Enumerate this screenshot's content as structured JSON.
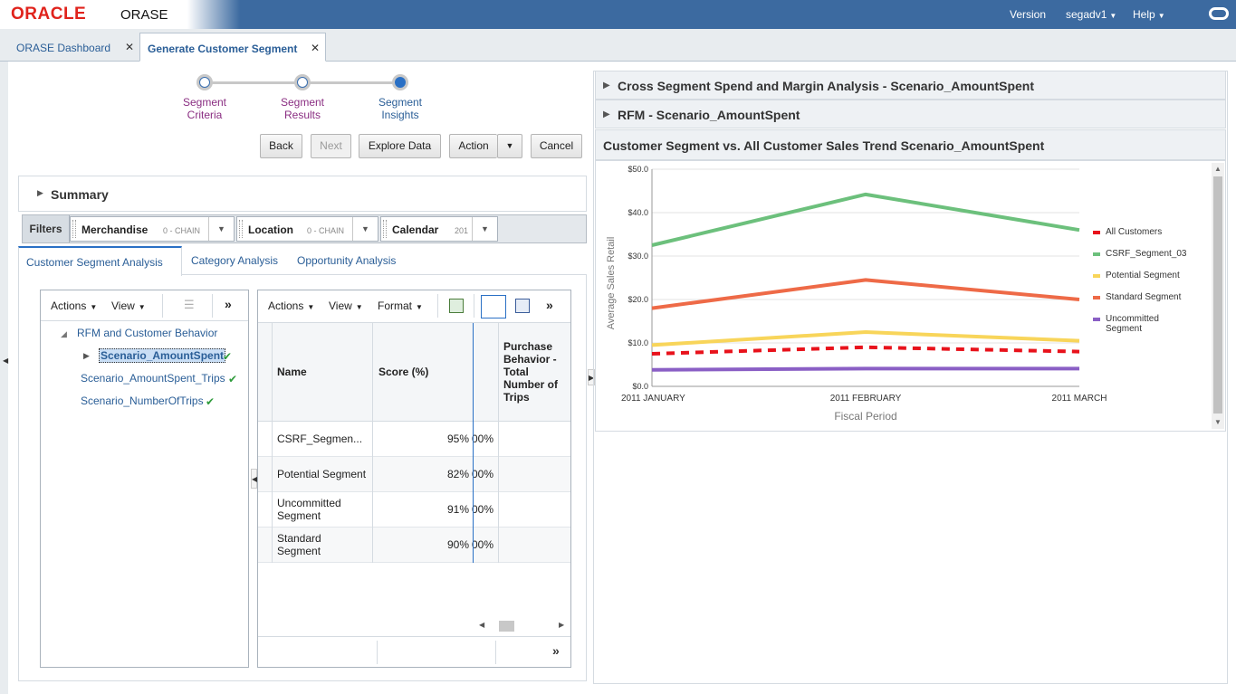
{
  "header": {
    "logo_text": "ORACLE",
    "app_name": "ORASE",
    "version_label": "Version",
    "user_label": "segadv1",
    "help_label": "Help"
  },
  "tabs": [
    {
      "label": "ORASE Dashboard",
      "active": false
    },
    {
      "label": "Generate Customer Segment",
      "active": true
    }
  ],
  "train": {
    "steps": [
      {
        "line1": "Segment",
        "line2": "Criteria"
      },
      {
        "line1": "Segment",
        "line2": "Results"
      },
      {
        "line1": "Segment",
        "line2": "Insights"
      }
    ],
    "current_step": 3
  },
  "buttons": {
    "back": "Back",
    "next": "Next",
    "explore": "Explore Data",
    "action": "Action",
    "cancel": "Cancel"
  },
  "summary": {
    "title": "Summary"
  },
  "filters": {
    "label": "Filters",
    "items": [
      {
        "name": "Merchandise",
        "sub": "0 - CHAIN"
      },
      {
        "name": "Location",
        "sub": "0 - CHAIN"
      },
      {
        "name": "Calendar",
        "sub": "201"
      }
    ]
  },
  "subtabs": [
    {
      "label": "Customer Segment Analysis",
      "active": true
    },
    {
      "label": "Category Analysis",
      "active": false
    },
    {
      "label": "Opportunity Analysis",
      "active": false
    }
  ],
  "tree": {
    "toolbar": {
      "actions": "Actions",
      "view": "View",
      "more": "»"
    },
    "root": "RFM and Customer Behavior",
    "nodes": [
      {
        "label": "Scenario_AmountSpent",
        "selected": true
      },
      {
        "label": "Scenario_AmountSpent_Trips",
        "selected": false
      },
      {
        "label": "Scenario_NumberOfTrips",
        "selected": false
      }
    ]
  },
  "table": {
    "toolbar": {
      "actions": "Actions",
      "view": "View",
      "format": "Format",
      "more": "»"
    },
    "headers": {
      "name": "Name",
      "score": "Score (%)",
      "purchase_l1": "Purchase",
      "purchase_l2": "Behavior -",
      "purchase_l3": "Total",
      "purchase_l4": "Number of",
      "purchase_l5": "Trips"
    },
    "rows": [
      {
        "name1": "CSRF_Segmen...",
        "name2": "",
        "score": "95%",
        "frag": "00%"
      },
      {
        "name1": "Potential Segment",
        "name2": "",
        "score": "82%",
        "frag": "00%"
      },
      {
        "name1": "Uncommitted",
        "name2": "Segment",
        "score": "91%",
        "frag": "00%"
      },
      {
        "name1": "Standard",
        "name2": "Segment",
        "score": "90%",
        "frag": "00%"
      }
    ],
    "footer_more": "»"
  },
  "right": {
    "acc1": "Cross Segment Spend and Margin Analysis - Scenario_AmountSpent",
    "acc2": "RFM - Scenario_AmountSpent",
    "acc3": "Customer Segment vs. All Customer Sales Trend Scenario_AmountSpent"
  },
  "chart_data": {
    "type": "line",
    "title": "Customer Segment vs. All Customer Sales Trend Scenario_AmountSpent",
    "xlabel": "Fiscal Period",
    "ylabel": "Average Sales Retail",
    "categories": [
      "2011 JANUARY",
      "2011 FEBRUARY",
      "2011 MARCH"
    ],
    "ylim": [
      0,
      50
    ],
    "yticks": [
      "$0.0",
      "$10.0",
      "$20.0",
      "$30.0",
      "$40.0",
      "$50.0"
    ],
    "grid": true,
    "legend_position": "right",
    "series": [
      {
        "name": "All Customers",
        "values": [
          7.5,
          9.0,
          8.0
        ],
        "color": "#e8121b",
        "dashed": true
      },
      {
        "name": "CSRF_Segment_03",
        "values": [
          32.5,
          44.2,
          36.0
        ],
        "color": "#6cc07c",
        "dashed": false
      },
      {
        "name": "Potential Segment",
        "values": [
          9.5,
          12.5,
          10.5
        ],
        "color": "#f8d55a",
        "dashed": false
      },
      {
        "name": "Standard Segment",
        "values": [
          18.0,
          24.5,
          20.0
        ],
        "color": "#ee6a47",
        "dashed": false
      },
      {
        "name": "Uncommitted Segment",
        "values": [
          3.8,
          4.1,
          4.1
        ],
        "color": "#8a5fc5",
        "dashed": false
      }
    ]
  }
}
